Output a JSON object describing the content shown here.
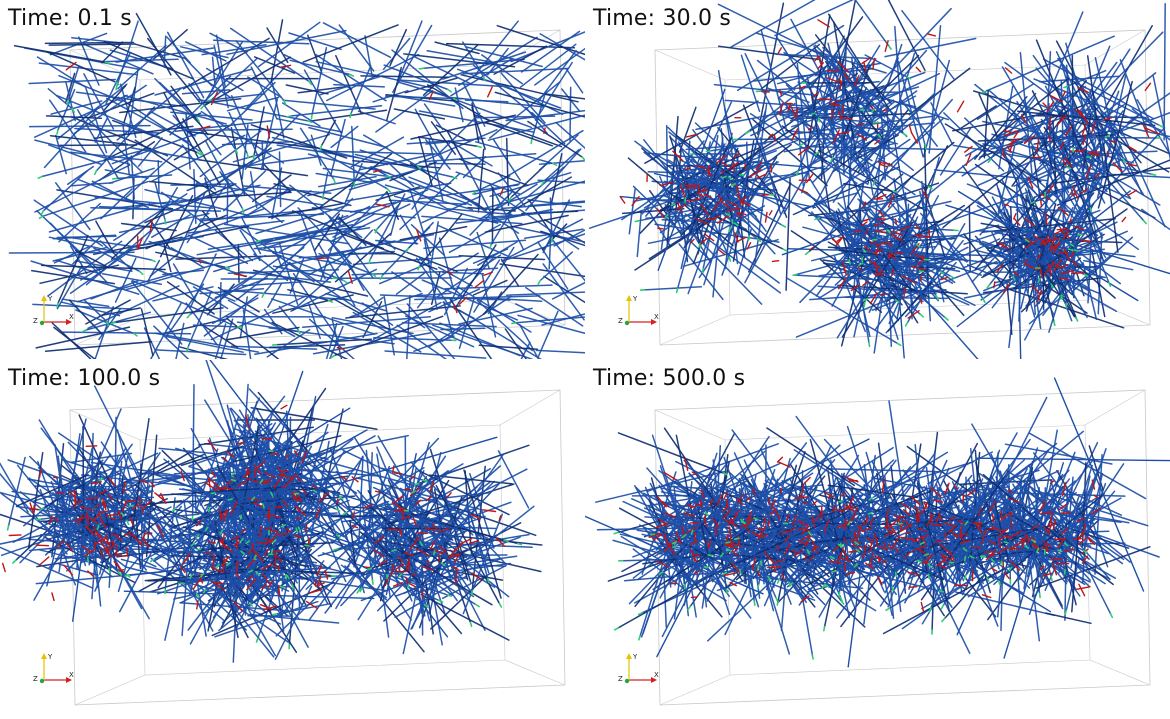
{
  "panels": [
    {
      "id": "p1",
      "time_label": "Time: 0.1 s",
      "seed": 11,
      "mode": "uniform",
      "clusters": []
    },
    {
      "id": "p2",
      "time_label": "Time: 30.0 s",
      "seed": 23,
      "mode": "clusters",
      "clusters": [
        [
          0.45,
          0.3,
          0.14
        ],
        [
          0.22,
          0.55,
          0.1
        ],
        [
          0.52,
          0.7,
          0.1
        ],
        [
          0.82,
          0.4,
          0.13
        ],
        [
          0.78,
          0.7,
          0.08
        ]
      ]
    },
    {
      "id": "p3",
      "time_label": "Time: 100.0 s",
      "seed": 37,
      "mode": "clusters",
      "clusters": [
        [
          0.17,
          0.45,
          0.1
        ],
        [
          0.45,
          0.35,
          0.1
        ],
        [
          0.42,
          0.55,
          0.1
        ],
        [
          0.72,
          0.5,
          0.12
        ]
      ]
    },
    {
      "id": "p4",
      "time_label": "Time: 500.0 s",
      "seed": 53,
      "mode": "band",
      "clusters": [
        [
          0.5,
          0.48,
          0.38
        ]
      ]
    }
  ],
  "axes": {
    "x": "X",
    "y": "Y",
    "z": "Z"
  },
  "colors": {
    "fiber": "#1d4fa8",
    "fiber_dark": "#0e2e73",
    "crosslink": "#c01515",
    "tip": "#2ecc71",
    "box": "#c8c8c8",
    "axis_x": "#d62020",
    "axis_y": "#e6c200",
    "axis_z": "#22a83a"
  }
}
